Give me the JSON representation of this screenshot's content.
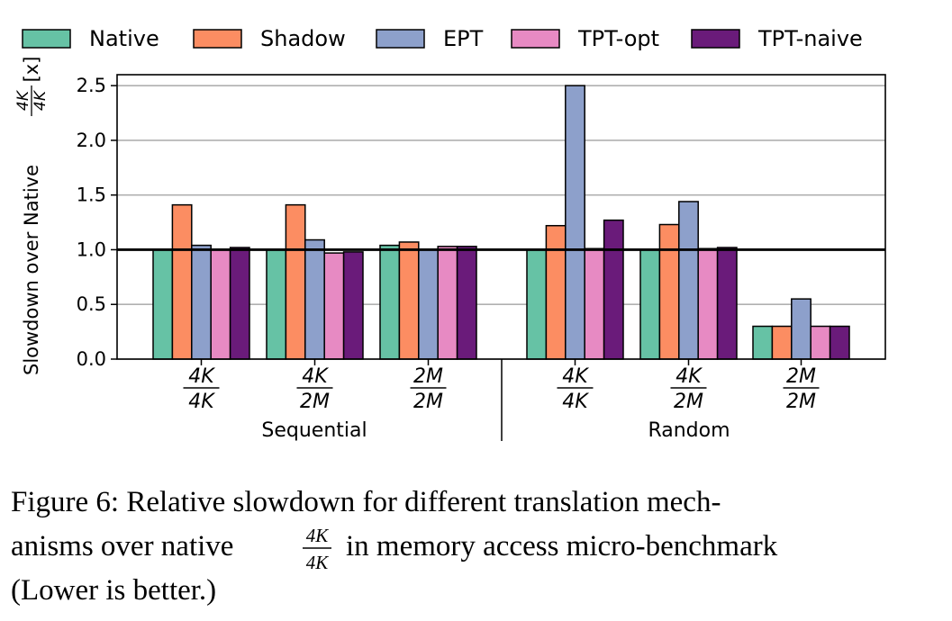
{
  "chart_data": {
    "type": "bar",
    "groups": [
      {
        "label": "Sequential",
        "categories": [
          {
            "num": "4K",
            "den": "4K"
          },
          {
            "num": "4K",
            "den": "2M"
          },
          {
            "num": "2M",
            "den": "2M"
          }
        ]
      },
      {
        "label": "Random",
        "categories": [
          {
            "num": "4K",
            "den": "4K"
          },
          {
            "num": "4K",
            "den": "2M"
          },
          {
            "num": "2M",
            "den": "2M"
          }
        ]
      }
    ],
    "series": [
      {
        "name": "Native",
        "color": "#66c2a5",
        "values": [
          1.0,
          1.0,
          1.04,
          1.0,
          1.0,
          0.3
        ]
      },
      {
        "name": "Shadow",
        "color": "#fc8d62",
        "values": [
          1.41,
          1.41,
          1.07,
          1.22,
          1.23,
          0.3
        ]
      },
      {
        "name": "EPT",
        "color": "#8da0cb",
        "values": [
          1.04,
          1.09,
          1.0,
          2.5,
          1.44,
          0.55
        ]
      },
      {
        "name": "TPT-opt",
        "color": "#e78ac3",
        "values": [
          1.0,
          0.97,
          1.03,
          1.01,
          1.01,
          0.3
        ]
      },
      {
        "name": "TPT-naive",
        "color": "#6a1b7a",
        "values": [
          1.02,
          0.98,
          1.03,
          1.27,
          1.02,
          0.3
        ]
      }
    ],
    "ylabel": {
      "prefix": "Slowdown over Native",
      "num": "4K",
      "den": "4K",
      "suffix": "[x]"
    },
    "ylim": [
      0,
      2.6
    ],
    "yticks": [
      "0.0",
      "0.5",
      "1.0",
      "1.5",
      "2.0",
      "2.5"
    ],
    "reference_line": 1.0,
    "grid": "horizontal",
    "legend_position": "top"
  },
  "caption": {
    "line1": "Figure 6: Relative slowdown for different translation mech-",
    "line2_before": "anisms over native",
    "frac_num": "4K",
    "frac_den": "4K",
    "line2_after": "in memory access micro-benchmark",
    "line3": "(Lower is better.)"
  }
}
